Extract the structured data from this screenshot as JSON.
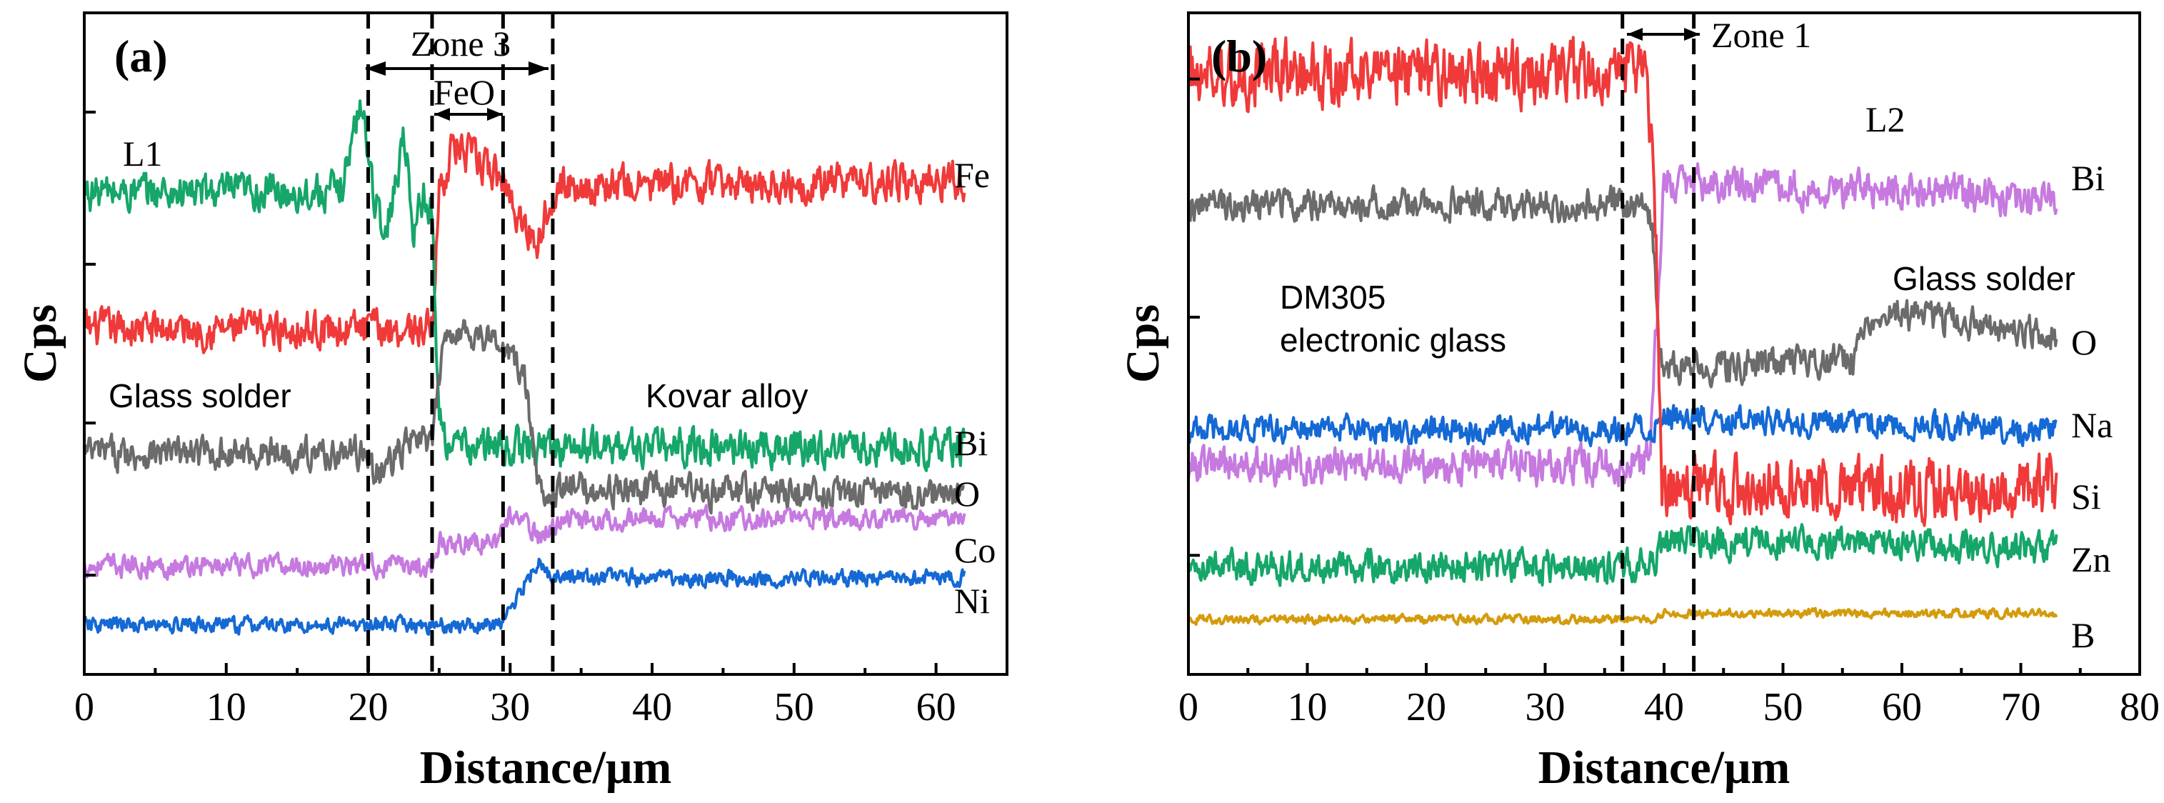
{
  "colors": {
    "red": "#f03a3a",
    "green": "#16a66a",
    "gray": "#6b6b6b",
    "purple": "#c67ae0",
    "blue": "#1469d4",
    "gold": "#d49b0c"
  },
  "chart_data": [
    {
      "type": "line",
      "panel": "(a)",
      "xlabel": "Distance/μm",
      "ylabel": "Cps",
      "xlim": [
        0,
        65
      ],
      "ylim": [
        0,
        100
      ],
      "xticks": [
        0,
        10,
        20,
        30,
        40,
        50,
        60
      ],
      "xtick_labels": [
        "0",
        "10",
        "20",
        "30",
        "40",
        "50",
        "60"
      ],
      "yticks": [
        15,
        38,
        62,
        85
      ],
      "x_end": 62,
      "vlines": [
        20,
        24.5,
        29.5,
        33
      ],
      "annotations": {
        "zone": "Zone 3",
        "phase": "FeO",
        "line_name": "L1",
        "left_region": "Glass solder",
        "right_region": "Kovar alloy"
      },
      "series": [
        {
          "name": "Fe",
          "color": "#f03a3a",
          "x": [
            0,
            24.5,
            25,
            26,
            29.5,
            31,
            32,
            33,
            62
          ],
          "y": [
            53,
            53,
            76,
            84,
            78,
            70,
            68,
            77,
            78
          ],
          "noise": 3.5
        },
        {
          "name": "Bi",
          "color": "#16a66a",
          "x": [
            0,
            18,
            19.5,
            20.5,
            21,
            22,
            22.5,
            23.2,
            24,
            24.5,
            25,
            26,
            62
          ],
          "y": [
            76,
            76,
            91,
            75,
            68,
            78,
            87,
            70,
            76,
            72,
            37,
            33,
            33
          ],
          "noise": 3.5
        },
        {
          "name": "O",
          "color": "#6b6b6b",
          "x": [
            0,
            20,
            20.5,
            23,
            24.5,
            25.5,
            28,
            29.5,
            31,
            32,
            62
          ],
          "y": [
            32,
            32,
            28,
            34,
            34,
            53,
            52,
            50,
            45,
            26,
            25
          ],
          "noise": 3.0
        },
        {
          "name": "Co",
          "color": "#c67ae0",
          "x": [
            0,
            24.5,
            25,
            29,
            30,
            32,
            34,
            62
          ],
          "y": [
            13,
            13,
            17,
            17,
            22,
            18,
            21,
            21
          ],
          "noise": 2.0
        },
        {
          "name": "Ni",
          "color": "#1469d4",
          "x": [
            0,
            29.5,
            30.5,
            32,
            33,
            62
          ],
          "y": [
            3,
            3,
            8,
            14,
            11,
            11
          ],
          "noise": 1.5
        }
      ]
    },
    {
      "type": "line",
      "panel": "(b)",
      "xlabel": "Distance/μm",
      "ylabel": "Cps",
      "xlim": [
        0,
        80
      ],
      "ylim": [
        0,
        100
      ],
      "xticks": [
        0,
        10,
        20,
        30,
        40,
        50,
        60,
        70,
        80
      ],
      "xtick_labels": [
        "0",
        "10",
        "20",
        "30",
        "40",
        "50",
        "60",
        "70",
        "80"
      ],
      "yticks": [
        18,
        54,
        90
      ],
      "x_end": 73,
      "vlines": [
        36.5,
        42.5
      ],
      "annotations": {
        "zone": "Zone 1",
        "line_name": "L2",
        "left_region_line1": "DM305",
        "left_region_line2": "electronic glass",
        "right_region": "Glass solder"
      },
      "series": [
        {
          "name": "Bi",
          "color": "#c67ae0",
          "x": [
            0,
            38,
            38.8,
            40,
            73
          ],
          "y": [
            30,
            30,
            33,
            78,
            75
          ],
          "noise": 3.5
        },
        {
          "name": "O",
          "color": "#6b6b6b",
          "x": [
            0,
            38,
            39,
            39.5,
            40,
            56,
            58,
            73
          ],
          "y": [
            74,
            74,
            70,
            52,
            46,
            48,
            56,
            52
          ],
          "noise": 3.0
        },
        {
          "name": "Na",
          "color": "#1469d4",
          "x": [
            0,
            39,
            40,
            73
          ],
          "y": [
            36,
            36,
            38,
            36
          ],
          "noise": 2.5
        },
        {
          "name": "Si",
          "color": "#f03a3a",
          "x": [
            0,
            38.3,
            39.2,
            39.8,
            73
          ],
          "y": [
            96,
            96,
            80,
            26,
            26
          ],
          "noise": 6.0
        },
        {
          "name": "Zn",
          "color": "#16a66a",
          "x": [
            0,
            39,
            40,
            73
          ],
          "y": [
            13,
            13,
            17,
            16
          ],
          "noise": 3.0
        },
        {
          "name": "B",
          "color": "#d49b0c",
          "x": [
            0,
            39,
            40,
            73
          ],
          "y": [
            4,
            4,
            5,
            5
          ],
          "noise": 0.8
        }
      ]
    }
  ]
}
